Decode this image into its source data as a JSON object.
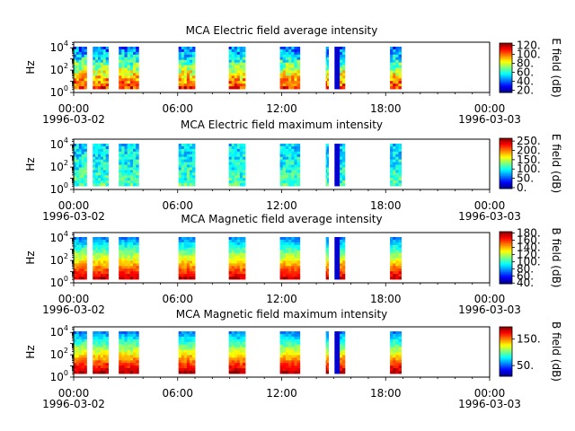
{
  "chart_data": [
    {
      "type": "heatmap",
      "title": "MCA  Electric field average intensity",
      "ylabel": "Hz",
      "colorbar_label": "E field (dB)",
      "colorbar_ticks": [
        "20.",
        "40.",
        "60.",
        "80.",
        "100.",
        "120."
      ],
      "colorbar_range": [
        15,
        125
      ],
      "yscale": "log",
      "yticks": [
        "10^0",
        "10^2",
        "10^4"
      ],
      "xticks": [
        "00:00",
        "06:00",
        "12:00",
        "18:00",
        "00:00"
      ],
      "xdates": [
        "1996-03-02",
        "1996-03-03"
      ],
      "xlim_hours": [
        0,
        24
      ],
      "ylim_log10": [
        0,
        4.5
      ],
      "data_intervals_hours": [
        [
          0.0,
          0.75
        ],
        [
          1.1,
          2.0
        ],
        [
          2.6,
          3.75
        ],
        [
          6.05,
          7.0
        ],
        [
          8.95,
          9.9
        ],
        [
          11.9,
          13.05
        ],
        [
          14.55,
          14.7
        ],
        [
          15.05,
          15.65
        ],
        [
          18.25,
          18.9
        ]
      ],
      "profile": "avgE"
    },
    {
      "type": "heatmap",
      "title": "MCA  Electric field maximum intensity",
      "ylabel": "Hz",
      "colorbar_label": "E field (dB)",
      "colorbar_ticks": [
        "0.",
        "50.",
        "100.",
        "150.",
        "200.",
        "250."
      ],
      "colorbar_range": [
        -5,
        265
      ],
      "yscale": "log",
      "yticks": [
        "10^0",
        "10^2",
        "10^4"
      ],
      "xticks": [
        "00:00",
        "06:00",
        "12:00",
        "18:00",
        "00:00"
      ],
      "xdates": [
        "1996-03-02",
        "1996-03-03"
      ],
      "xlim_hours": [
        0,
        24
      ],
      "ylim_log10": [
        0,
        4.5
      ],
      "data_intervals_hours": [
        [
          0.0,
          0.75
        ],
        [
          1.1,
          2.0
        ],
        [
          2.6,
          3.75
        ],
        [
          6.05,
          7.0
        ],
        [
          8.95,
          9.9
        ],
        [
          11.9,
          13.05
        ],
        [
          14.55,
          14.7
        ],
        [
          15.05,
          15.65
        ],
        [
          18.25,
          18.9
        ]
      ],
      "profile": "maxE"
    },
    {
      "type": "heatmap",
      "title": "MCA  Magnetic field average intensity",
      "ylabel": "Hz",
      "colorbar_label": "B field (dB)",
      "colorbar_ticks": [
        "40.",
        "60.",
        "80.",
        "100.",
        "120.",
        "140.",
        "160.",
        "180."
      ],
      "colorbar_range": [
        38,
        184
      ],
      "yscale": "log",
      "yticks": [
        "10^0",
        "10^2",
        "10^4"
      ],
      "xticks": [
        "00:00",
        "06:00",
        "12:00",
        "18:00",
        "00:00"
      ],
      "xdates": [
        "1996-03-02",
        "1996-03-03"
      ],
      "xlim_hours": [
        0,
        24
      ],
      "ylim_log10": [
        0,
        4.5
      ],
      "data_intervals_hours": [
        [
          0.0,
          0.75
        ],
        [
          1.1,
          2.0
        ],
        [
          2.6,
          3.75
        ],
        [
          6.05,
          7.0
        ],
        [
          8.95,
          9.9
        ],
        [
          11.9,
          13.05
        ],
        [
          14.55,
          14.7
        ],
        [
          15.05,
          15.65
        ],
        [
          18.25,
          18.9
        ]
      ],
      "profile": "avgB"
    },
    {
      "type": "heatmap",
      "title": "MCA  Magnetic field maximum intensity",
      "ylabel": "Hz",
      "colorbar_label": "B field (dB)",
      "colorbar_ticks": [
        "50.",
        "150."
      ],
      "colorbar_range": [
        10,
        195
      ],
      "yscale": "log",
      "yticks": [
        "10^0",
        "10^2",
        "10^4"
      ],
      "xticks": [
        "00:00",
        "06:00",
        "12:00",
        "18:00",
        "00:00"
      ],
      "xdates": [
        "1996-03-02",
        "1996-03-03"
      ],
      "xlim_hours": [
        0,
        24
      ],
      "ylim_log10": [
        0,
        4.5
      ],
      "data_intervals_hours": [
        [
          0.0,
          0.75
        ],
        [
          1.1,
          2.0
        ],
        [
          2.6,
          3.75
        ],
        [
          6.05,
          7.0
        ],
        [
          8.95,
          9.9
        ],
        [
          11.9,
          13.05
        ],
        [
          14.55,
          14.7
        ],
        [
          15.05,
          15.65
        ],
        [
          18.25,
          18.9
        ]
      ],
      "profile": "maxB"
    }
  ]
}
